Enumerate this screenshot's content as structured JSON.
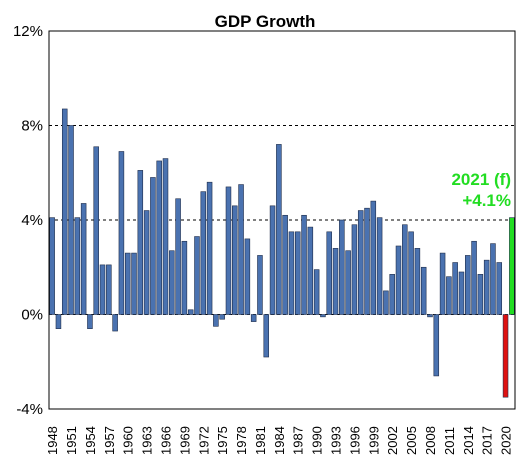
{
  "chart_data": {
    "type": "bar",
    "title": "GDP Growth",
    "xlabel": "",
    "ylabel": "",
    "ylim": [
      -4,
      12
    ],
    "yticks": [
      -4,
      0,
      4,
      8,
      12
    ],
    "ytick_labels": [
      "-4%",
      "0%",
      "4%",
      "8%",
      "12%"
    ],
    "xtick_labels": [
      "1948",
      "1951",
      "1954",
      "1957",
      "1960",
      "1963",
      "1966",
      "1969",
      "1972",
      "1975",
      "1978",
      "1981",
      "1984",
      "1987",
      "1990",
      "1993",
      "1996",
      "1999",
      "2002",
      "2005",
      "2008",
      "2011",
      "2014",
      "2017",
      "2020"
    ],
    "grid": "horizontal",
    "legend": "none",
    "colors": {
      "bar": "#4a72b0",
      "bar_edge": "#1f2d4a",
      "forecast": "#22dd22",
      "latest": "#dd1111",
      "grid": "#000000"
    },
    "years": [
      1948,
      1949,
      1950,
      1951,
      1952,
      1953,
      1954,
      1955,
      1956,
      1957,
      1958,
      1959,
      1960,
      1961,
      1962,
      1963,
      1964,
      1965,
      1966,
      1967,
      1968,
      1969,
      1970,
      1971,
      1972,
      1973,
      1974,
      1975,
      1976,
      1977,
      1978,
      1979,
      1980,
      1981,
      1982,
      1983,
      1984,
      1985,
      1986,
      1987,
      1988,
      1989,
      1990,
      1991,
      1992,
      1993,
      1994,
      1995,
      1996,
      1997,
      1998,
      1999,
      2000,
      2001,
      2002,
      2003,
      2004,
      2005,
      2006,
      2007,
      2008,
      2009,
      2010,
      2011,
      2012,
      2013,
      2014,
      2015,
      2016,
      2017,
      2018,
      2019,
      2020,
      2021
    ],
    "values": [
      4.1,
      -0.6,
      8.7,
      8.0,
      4.1,
      4.7,
      -0.6,
      7.1,
      2.1,
      2.1,
      -0.7,
      6.9,
      2.6,
      2.6,
      6.1,
      4.4,
      5.8,
      6.5,
      6.6,
      2.7,
      4.9,
      3.1,
      0.2,
      3.3,
      5.2,
      5.6,
      -0.5,
      -0.2,
      5.4,
      4.6,
      5.5,
      3.2,
      -0.3,
      2.5,
      -1.8,
      4.6,
      7.2,
      4.2,
      3.5,
      3.5,
      4.2,
      3.7,
      1.9,
      -0.1,
      3.5,
      2.8,
      4.0,
      2.7,
      3.8,
      4.4,
      4.5,
      4.8,
      4.1,
      1.0,
      1.7,
      2.9,
      3.8,
      3.5,
      2.8,
      2.0,
      -0.1,
      -2.6,
      2.6,
      1.6,
      2.2,
      1.8,
      2.5,
      3.1,
      1.7,
      2.3,
      3.0,
      2.2,
      -3.5,
      4.1
    ],
    "series": [
      {
        "values": "values"
      }
    ],
    "annotations": [
      {
        "line1": "2021 (f)",
        "line2": "+4.1%"
      }
    ]
  }
}
